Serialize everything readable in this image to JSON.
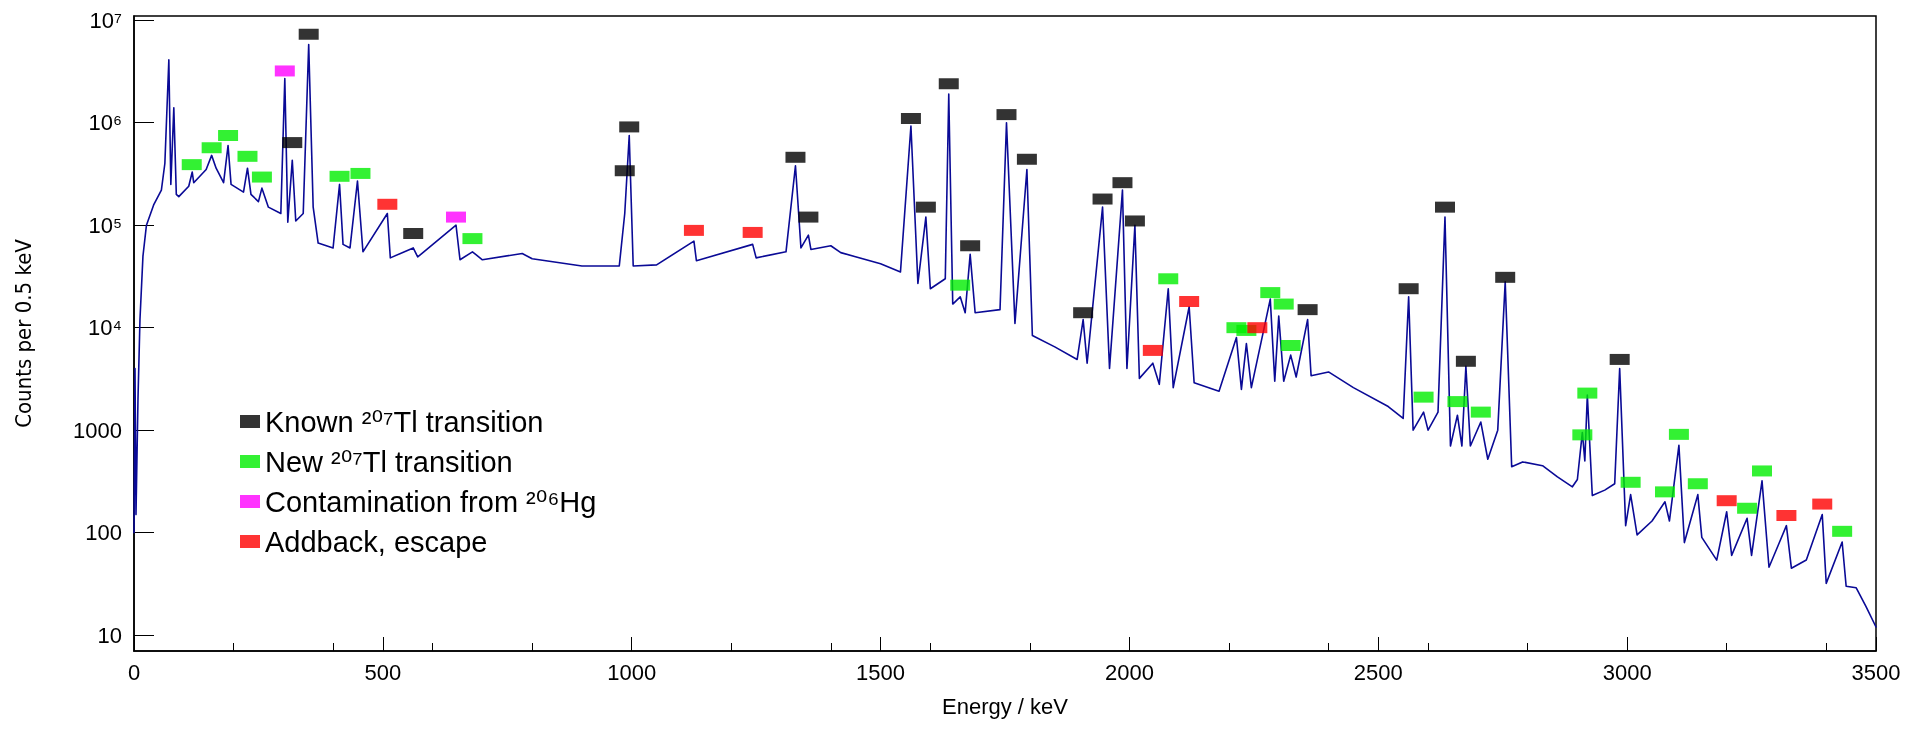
{
  "chart_data": {
    "type": "line",
    "xlabel": "Energy / keV",
    "ylabel": "Counts per 0.5 keV",
    "log": "y",
    "grid": false,
    "legend": "bottom left",
    "xlim": [
      0,
      3500
    ],
    "xticks": [
      0,
      500,
      1000,
      1500,
      2000,
      2500,
      3000,
      3500
    ],
    "ylim": [
      7,
      11000000
    ],
    "yticks": [
      10,
      100,
      1000,
      {
        "value": 10000,
        "label": "10⁴"
      },
      {
        "value": 100000,
        "label": "10⁵"
      },
      {
        "value": 1000000,
        "label": "10⁶"
      },
      {
        "value": 10000000,
        "label": "10⁷"
      }
    ],
    "series": [
      {
        "type": "line",
        "color": "#0a0a96",
        "marker": "none",
        "line_style": "solid",
        "x": [
          0,
          2,
          4,
          8,
          12,
          18,
          25,
          40,
          55,
          62,
          70,
          74,
          80,
          85,
          90,
          110,
          117,
          120,
          145,
          156,
          165,
          180,
          189,
          195,
          220,
          228,
          235,
          250,
          257,
          270,
          295,
          303,
          309,
          318,
          325,
          340,
          351,
          360,
          370,
          400,
          413,
          420,
          434,
          449,
          460,
          509,
          515,
          561,
          570,
          647,
          655,
          680,
          700,
          780,
          800,
          900,
          975,
          986,
          995,
          1003,
          1050,
          1125,
          1130,
          1243,
          1250,
          1310,
          1329,
          1340,
          1355,
          1360,
          1400,
          1420,
          1500,
          1540,
          1561,
          1575,
          1591,
          1600,
          1630,
          1637,
          1645,
          1660,
          1670,
          1680,
          1690,
          1740,
          1753,
          1770,
          1794,
          1805,
          1850,
          1895,
          1907,
          1915,
          1946,
          1960,
          1986,
          1995,
          2011,
          2020,
          2047,
          2060,
          2078,
          2088,
          2120,
          2130,
          2180,
          2215,
          2225,
          2235,
          2245,
          2283,
          2292,
          2300,
          2310,
          2324,
          2335,
          2358,
          2365,
          2400,
          2450,
          2520,
          2550,
          2561,
          2570,
          2591,
          2600,
          2620,
          2634,
          2645,
          2659,
          2668,
          2676,
          2685,
          2706,
          2720,
          2740,
          2755,
          2768,
          2790,
          2830,
          2860,
          2890,
          2900,
          2910,
          2915,
          2920,
          2930,
          2955,
          2975,
          2985,
          2997,
          3007,
          3020,
          3050,
          3076,
          3085,
          3104,
          3115,
          3142,
          3150,
          3180,
          3200,
          3210,
          3241,
          3250,
          3271,
          3285,
          3320,
          3330,
          3360,
          3392,
          3400,
          3432,
          3440,
          3460,
          3480,
          3500
        ],
        "values": [
          100,
          4000,
          150,
          2000,
          12000,
          50000,
          100000,
          160000,
          220000,
          400000,
          4100000,
          250000,
          1400000,
          200000,
          190000,
          240000,
          330000,
          260000,
          350000,
          480000,
          360000,
          260000,
          600000,
          250000,
          210000,
          360000,
          200000,
          170000,
          230000,
          150000,
          130000,
          2700000,
          107000,
          430000,
          110000,
          130000,
          5800000,
          150000,
          67000,
          60000,
          250000,
          65000,
          60000,
          270000,
          55000,
          130000,
          48000,
          60000,
          49000,
          100000,
          46000,
          55000,
          46000,
          53000,
          47000,
          40000,
          40000,
          130000,
          750000,
          40000,
          41000,
          70000,
          45000,
          65000,
          48000,
          55000,
          380000,
          60000,
          80000,
          58000,
          63000,
          54000,
          42000,
          35000,
          930000,
          27000,
          120000,
          24000,
          30000,
          1900000,
          17000,
          20000,
          14000,
          52000,
          14000,
          15000,
          1000000,
          11000,
          350000,
          8400,
          6500,
          4900,
          12000,
          4500,
          150000,
          4000,
          220000,
          4000,
          100000,
          3200,
          4500,
          2800,
          24000,
          2600,
          16000,
          2900,
          2400,
          8000,
          2500,
          7000,
          2600,
          19000,
          3000,
          13000,
          3000,
          5400,
          3300,
          12000,
          3400,
          3700,
          2600,
          1700,
          1300,
          20000,
          1000,
          1500,
          1000,
          1500,
          120000,
          700,
          1400,
          700,
          4200,
          700,
          1200,
          520,
          1000,
          28000,
          440,
          490,
          450,
          350,
          280,
          330,
          950,
          500,
          2200,
          230,
          260,
          300,
          4000,
          117,
          235,
          95,
          130,
          200,
          130,
          710,
          80,
          235,
          90,
          54,
          160,
          60,
          138,
          60,
          320,
          46,
          117,
          45,
          54,
          150,
          32,
          81,
          30,
          29,
          19,
          12
        ]
      },
      {
        "type": "scatter",
        "name": "Known ²⁰⁷Tl transition",
        "color": "#000000",
        "marker": "square",
        "x": [
          318,
          351,
          561,
          986,
          995,
          1329,
          1355,
          1561,
          1591,
          1637,
          1680,
          1753,
          1794,
          1907,
          1946,
          1986,
          2011,
          2358,
          2561,
          2634,
          2676,
          2755,
          2985
        ],
        "values": [
          640000,
          7300000,
          83000,
          340000,
          910000,
          460000,
          120000,
          1100000,
          150000,
          2400000,
          63000,
          1200000,
          440000,
          14000,
          180000,
          260000,
          110000,
          15000,
          24000,
          150000,
          4700,
          31000,
          4900
        ]
      },
      {
        "type": "scatter",
        "name": "New ²⁰⁷Tl transition",
        "color": "#00ee00",
        "marker": "square",
        "x": [
          116,
          156,
          189,
          228,
          257,
          413,
          455,
          680,
          1660,
          2078,
          2215,
          2235,
          2283,
          2310,
          2324,
          2591,
          2659,
          2706,
          2910,
          2920,
          3007,
          3076,
          3104,
          3142,
          3241,
          3271,
          3432
        ],
        "values": [
          390000,
          570000,
          750000,
          470000,
          295000,
          300000,
          320000,
          74000,
          26000,
          30000,
          10000,
          9400,
          22000,
          17000,
          6700,
          2100,
          1900,
          1500,
          900,
          2300,
          310,
          250,
          910,
          300,
          173,
          400,
          103
        ]
      },
      {
        "type": "scatter",
        "name": "Contamination from ²⁰⁶Hg",
        "color": "#ff00ff",
        "marker": "square",
        "x": [
          303,
          647
        ],
        "values": [
          3200000,
          120000
        ]
      },
      {
        "type": "scatter",
        "name": "Addback, escape",
        "color": "#ff0000",
        "marker": "square",
        "x": [
          509,
          1125,
          1243,
          2047,
          2120,
          2257,
          3200,
          3320,
          3392
        ],
        "values": [
          160000,
          89000,
          85000,
          6000,
          18000,
          10000,
          205,
          147,
          190
        ]
      }
    ]
  }
}
